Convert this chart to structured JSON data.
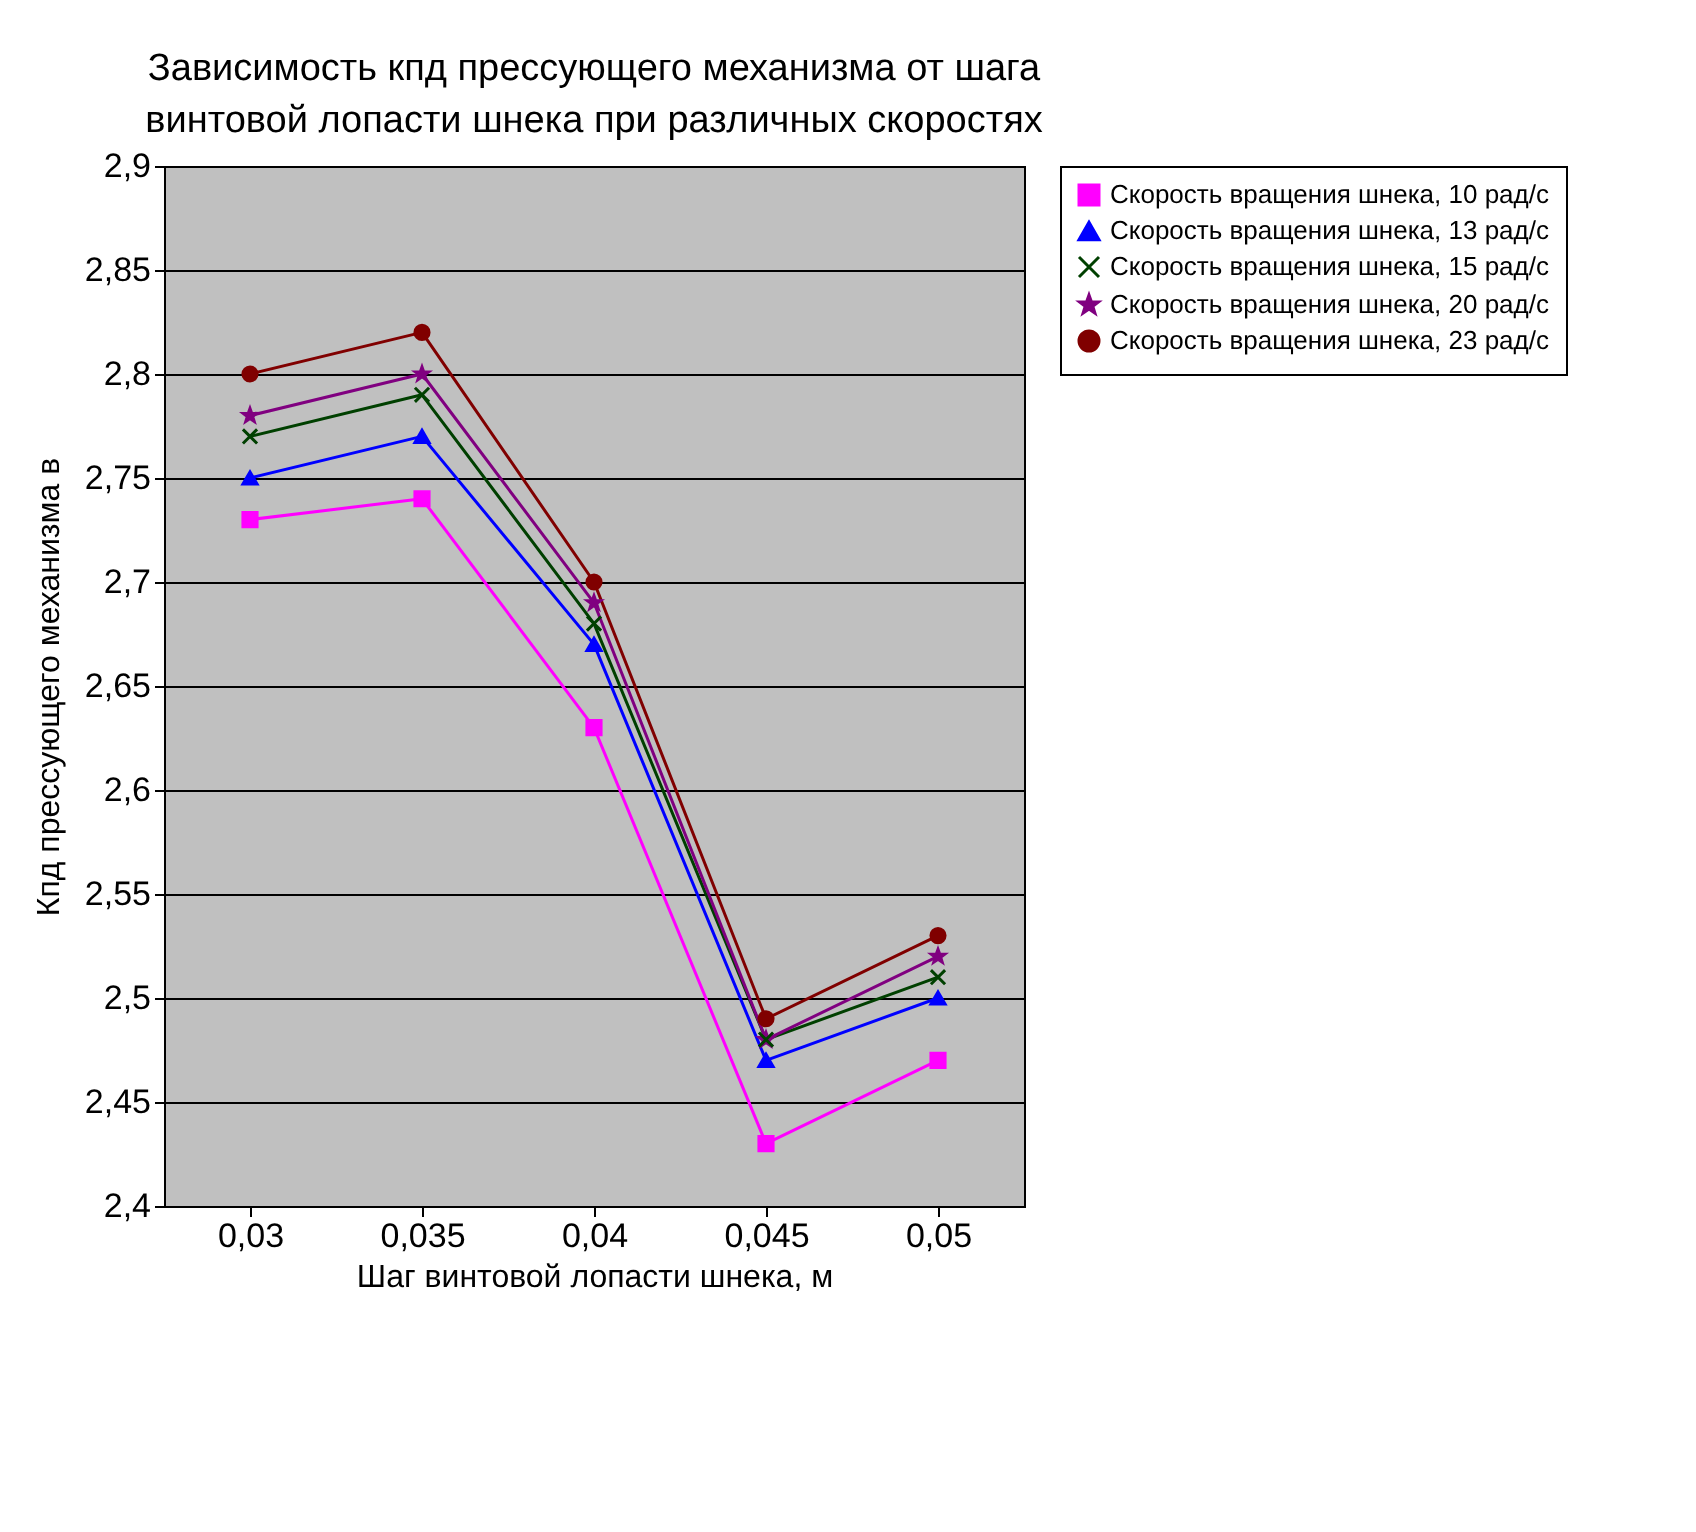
{
  "chart_data": {
    "type": "line",
    "title": "Зависимость кпд прессующего механизма от шага винтовой лопасти шнека при различных скоростях",
    "xlabel": "Шаг винтовой лопасти шнека, м",
    "ylabel": "Кпд прессующего механизма в",
    "categories": [
      "0,03",
      "0,035",
      "0,04",
      "0,045",
      "0,05"
    ],
    "series": [
      {
        "name": "Скорость вращения шнека, 10 рад/с",
        "color": "#ff00ff",
        "marker": "square",
        "values": [
          2.73,
          2.74,
          2.63,
          2.43,
          2.47
        ]
      },
      {
        "name": "Скорость вращения шнека, 13 рад/с",
        "color": "#0000ff",
        "marker": "triangle",
        "values": [
          2.75,
          2.77,
          2.67,
          2.47,
          2.5
        ]
      },
      {
        "name": "Скорость вращения шнека, 15 рад/с",
        "color": "#004000",
        "marker": "cross",
        "values": [
          2.77,
          2.79,
          2.68,
          2.48,
          2.51
        ]
      },
      {
        "name": "Скорость вращения шнека, 20 рад/с",
        "color": "#800080",
        "marker": "star",
        "values": [
          2.78,
          2.8,
          2.69,
          2.48,
          2.52
        ]
      },
      {
        "name": "Скорость вращения шнека, 23 рад/с",
        "color": "#800000",
        "marker": "circle",
        "values": [
          2.8,
          2.82,
          2.7,
          2.49,
          2.53
        ]
      }
    ],
    "ylim": [
      2.4,
      2.9
    ],
    "yticks": [
      {
        "value": 2.4,
        "label": "2,4"
      },
      {
        "value": 2.45,
        "label": "2,45"
      },
      {
        "value": 2.5,
        "label": "2,5"
      },
      {
        "value": 2.55,
        "label": "2,55"
      },
      {
        "value": 2.6,
        "label": "2,6"
      },
      {
        "value": 2.65,
        "label": "2,65"
      },
      {
        "value": 2.7,
        "label": "2,7"
      },
      {
        "value": 2.75,
        "label": "2,75"
      },
      {
        "value": 2.8,
        "label": "2,8"
      },
      {
        "value": 2.85,
        "label": "2,85"
      },
      {
        "value": 2.9,
        "label": "2,9"
      }
    ],
    "grid": "y",
    "legend": "right",
    "line_style": "solid"
  }
}
